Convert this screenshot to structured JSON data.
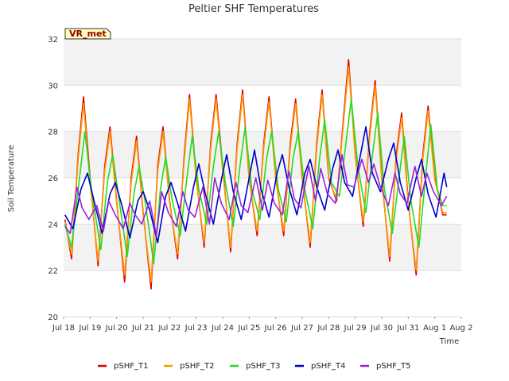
{
  "chart_data": {
    "type": "line",
    "title": "Peltier SHF Temperatures",
    "xlabel": "Time",
    "ylabel": "Soil Temperature",
    "badge": "VR_met",
    "ylim": [
      20,
      32
    ],
    "yticks": [
      20,
      22,
      24,
      26,
      28,
      30,
      32
    ],
    "xlim": [
      0,
      15
    ],
    "xticks": [
      "Jul 18",
      "Jul 19",
      "Jul 20",
      "Jul 21",
      "Jul 22",
      "Jul 23",
      "Jul 24",
      "Jul 25",
      "Jul 26",
      "Jul 27",
      "Jul 28",
      "Jul 29",
      "Jul 30",
      "Jul 31",
      "Aug 1",
      "Aug 2"
    ],
    "grid": true,
    "legend_position": "bottom",
    "series_x_days_since": "Jul 18",
    "series": [
      {
        "name": "pSHF_T1",
        "color": "#dd0000",
        "x": [
          0.05,
          0.3,
          0.55,
          0.75,
          1.0,
          1.3,
          1.55,
          1.75,
          2.0,
          2.3,
          2.55,
          2.75,
          3.0,
          3.3,
          3.55,
          3.75,
          4.0,
          4.3,
          4.55,
          4.75,
          5.0,
          5.3,
          5.55,
          5.75,
          6.0,
          6.3,
          6.55,
          6.75,
          7.0,
          7.3,
          7.55,
          7.75,
          8.0,
          8.3,
          8.55,
          8.75,
          9.0,
          9.3,
          9.55,
          9.75,
          10.0,
          10.3,
          10.55,
          10.75,
          11.0,
          11.3,
          11.55,
          11.75,
          12.0,
          12.3,
          12.55,
          12.75,
          13.0,
          13.3,
          13.55,
          13.75,
          14.0,
          14.3,
          14.45
        ],
        "y": [
          24.2,
          22.5,
          27.0,
          29.5,
          26.0,
          22.2,
          26.5,
          28.2,
          25.0,
          21.5,
          26.0,
          27.8,
          24.5,
          21.2,
          26.5,
          28.2,
          25.0,
          22.5,
          27.0,
          29.6,
          26.0,
          23.0,
          27.5,
          29.6,
          26.5,
          22.8,
          27.5,
          29.8,
          26.0,
          23.5,
          27.5,
          29.5,
          26.0,
          23.5,
          27.5,
          29.4,
          26.0,
          23.0,
          27.5,
          29.8,
          26.0,
          25.0,
          28.5,
          31.1,
          27.0,
          23.9,
          28.0,
          30.2,
          26.0,
          22.4,
          27.0,
          28.8,
          25.0,
          21.8,
          27.0,
          29.1,
          26.0,
          24.4,
          24.4
        ]
      },
      {
        "name": "pSHF_T2",
        "color": "#ff9900",
        "x": [
          0.05,
          0.3,
          0.55,
          0.75,
          1.0,
          1.3,
          1.55,
          1.75,
          2.0,
          2.3,
          2.55,
          2.75,
          3.0,
          3.3,
          3.55,
          3.75,
          4.0,
          4.3,
          4.55,
          4.75,
          5.0,
          5.3,
          5.55,
          5.75,
          6.0,
          6.3,
          6.55,
          6.75,
          7.0,
          7.3,
          7.55,
          7.75,
          8.0,
          8.3,
          8.55,
          8.75,
          9.0,
          9.3,
          9.55,
          9.75,
          10.0,
          10.3,
          10.55,
          10.75,
          11.0,
          11.3,
          11.55,
          11.75,
          12.0,
          12.3,
          12.55,
          12.75,
          13.0,
          13.3,
          13.55,
          13.75,
          14.0,
          14.3,
          14.45
        ],
        "y": [
          24.1,
          22.7,
          26.8,
          29.2,
          25.8,
          22.4,
          26.3,
          28.0,
          24.9,
          21.8,
          25.8,
          27.6,
          24.4,
          21.5,
          26.3,
          28.0,
          24.9,
          22.7,
          26.8,
          29.4,
          25.9,
          23.2,
          27.3,
          29.4,
          26.3,
          23.0,
          27.3,
          29.6,
          25.9,
          23.7,
          27.3,
          29.3,
          25.9,
          23.7,
          27.3,
          29.2,
          25.9,
          23.2,
          27.3,
          29.6,
          25.9,
          25.1,
          28.3,
          30.8,
          26.9,
          24.1,
          27.8,
          30.0,
          25.9,
          22.6,
          26.8,
          28.6,
          24.9,
          22.0,
          26.8,
          28.9,
          25.9,
          24.5,
          24.5
        ]
      },
      {
        "name": "pSHF_T3",
        "color": "#22dd22",
        "x": [
          0.05,
          0.3,
          0.6,
          0.8,
          1.05,
          1.4,
          1.65,
          1.85,
          2.1,
          2.4,
          2.65,
          2.85,
          3.1,
          3.4,
          3.65,
          3.85,
          4.1,
          4.4,
          4.65,
          4.85,
          5.1,
          5.4,
          5.65,
          5.85,
          6.1,
          6.4,
          6.65,
          6.85,
          7.1,
          7.4,
          7.65,
          7.85,
          8.1,
          8.4,
          8.65,
          8.85,
          9.1,
          9.4,
          9.65,
          9.85,
          10.1,
          10.4,
          10.65,
          10.85,
          11.1,
          11.4,
          11.65,
          11.85,
          12.1,
          12.4,
          12.65,
          12.85,
          13.1,
          13.4,
          13.65,
          13.85,
          14.1,
          14.3,
          14.45
        ],
        "y": [
          24.0,
          23.0,
          26.0,
          28.0,
          25.5,
          22.9,
          25.8,
          27.0,
          25.0,
          22.6,
          25.3,
          26.5,
          24.8,
          22.3,
          25.5,
          26.9,
          25.0,
          23.5,
          26.0,
          27.8,
          25.5,
          24.0,
          26.5,
          28.0,
          25.8,
          23.9,
          26.5,
          28.2,
          25.5,
          24.2,
          26.8,
          28.0,
          25.5,
          24.1,
          26.8,
          28.0,
          25.5,
          23.8,
          26.8,
          28.5,
          25.8,
          25.2,
          27.5,
          29.4,
          26.5,
          24.5,
          27.0,
          28.8,
          25.5,
          23.6,
          26.0,
          27.8,
          25.0,
          23.0,
          26.0,
          28.3,
          25.5,
          24.8,
          24.8
        ]
      },
      {
        "name": "pSHF_T4",
        "color": "#0000cc",
        "x": [
          0.05,
          0.35,
          0.65,
          0.9,
          1.15,
          1.45,
          1.75,
          1.95,
          2.2,
          2.5,
          2.8,
          3.0,
          3.25,
          3.55,
          3.85,
          4.05,
          4.3,
          4.6,
          4.9,
          5.1,
          5.35,
          5.65,
          5.95,
          6.15,
          6.4,
          6.7,
          7.0,
          7.2,
          7.45,
          7.75,
          8.05,
          8.25,
          8.5,
          8.8,
          9.1,
          9.3,
          9.55,
          9.85,
          10.15,
          10.35,
          10.6,
          10.9,
          11.2,
          11.4,
          11.65,
          11.95,
          12.25,
          12.45,
          12.7,
          13.0,
          13.3,
          13.5,
          13.75,
          14.05,
          14.35,
          14.45
        ],
        "y": [
          24.4,
          23.8,
          25.5,
          26.2,
          25.0,
          23.6,
          25.3,
          25.8,
          24.8,
          23.4,
          25.0,
          25.4,
          24.6,
          23.2,
          25.2,
          25.8,
          24.9,
          23.7,
          25.6,
          26.6,
          25.3,
          24.0,
          25.9,
          27.0,
          25.4,
          24.2,
          26.0,
          27.2,
          25.5,
          24.3,
          26.2,
          27.0,
          25.6,
          24.4,
          26.2,
          26.8,
          25.6,
          24.6,
          26.4,
          27.2,
          25.8,
          25.2,
          27.0,
          28.2,
          26.2,
          25.4,
          26.8,
          27.5,
          25.8,
          24.6,
          26.0,
          26.8,
          25.3,
          24.3,
          26.2,
          25.6
        ]
      },
      {
        "name": "pSHF_T5",
        "color": "#9922dd",
        "x": [
          0.05,
          0.25,
          0.5,
          0.7,
          0.95,
          1.25,
          1.5,
          1.7,
          1.95,
          2.25,
          2.5,
          2.7,
          2.95,
          3.25,
          3.5,
          3.7,
          3.95,
          4.25,
          4.5,
          4.7,
          4.95,
          5.25,
          5.5,
          5.7,
          5.95,
          6.25,
          6.5,
          6.7,
          6.95,
          7.25,
          7.5,
          7.7,
          7.95,
          8.25,
          8.5,
          8.7,
          8.95,
          9.25,
          9.5,
          9.7,
          9.95,
          10.25,
          10.5,
          10.7,
          10.95,
          11.25,
          11.5,
          11.7,
          11.95,
          12.25,
          12.5,
          12.7,
          12.95,
          13.25,
          13.5,
          13.7,
          13.95,
          14.25,
          14.45
        ],
        "y": [
          23.9,
          23.6,
          25.6,
          24.7,
          24.2,
          24.8,
          23.7,
          25.0,
          24.4,
          23.8,
          24.9,
          24.4,
          24.0,
          25.0,
          23.5,
          25.4,
          24.5,
          23.9,
          25.4,
          24.6,
          24.3,
          25.6,
          24.0,
          26.0,
          24.9,
          24.2,
          25.8,
          24.8,
          24.5,
          26.0,
          24.6,
          25.9,
          24.9,
          24.4,
          26.3,
          25.1,
          24.7,
          26.5,
          25.0,
          26.4,
          25.3,
          24.9,
          27.0,
          25.7,
          25.6,
          26.8,
          25.8,
          26.6,
          25.6,
          24.8,
          26.2,
          25.3,
          24.9,
          26.5,
          25.2,
          26.2,
          25.4,
          24.8,
          25.2
        ]
      }
    ]
  }
}
